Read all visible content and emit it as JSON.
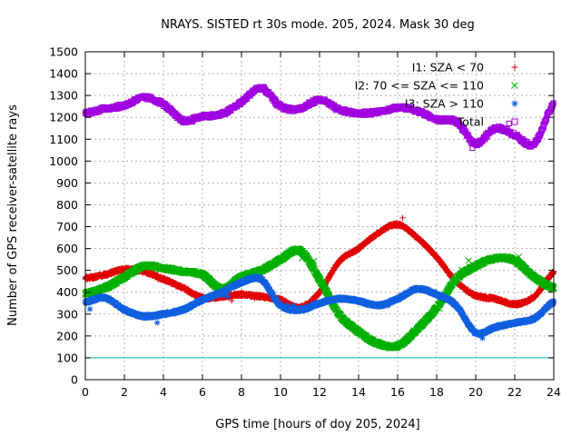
{
  "chart_data": {
    "type": "scatter",
    "title": "NRAYS. SISTED rt 30s mode. 205, 2024. Mask 30 deg",
    "xlabel": "GPS time [hours of doy 205, 2024]",
    "ylabel": "Number of GPS receiver-satellite rays",
    "xlim": [
      0,
      24
    ],
    "ylim": [
      0,
      1500
    ],
    "xticks": [
      0,
      2,
      4,
      6,
      8,
      10,
      12,
      14,
      16,
      18,
      20,
      22,
      24
    ],
    "yticks": [
      0,
      100,
      200,
      300,
      400,
      500,
      600,
      700,
      800,
      900,
      1000,
      1100,
      1200,
      1300,
      1400,
      1500
    ],
    "grid": true,
    "legend_position": "top-right",
    "threshold_line": {
      "y": 100,
      "color": "#00c0c0"
    },
    "series": [
      {
        "name": "I1: SZA < 70",
        "marker": "plus",
        "color": "#e00000",
        "points": [
          [
            0,
            465
          ],
          [
            1,
            480
          ],
          [
            2,
            505
          ],
          [
            3,
            495
          ],
          [
            4,
            460
          ],
          [
            5,
            420
          ],
          [
            6,
            375
          ],
          [
            7,
            380
          ],
          [
            8,
            390
          ],
          [
            9,
            380
          ],
          [
            10,
            365
          ],
          [
            11,
            330
          ],
          [
            12,
            400
          ],
          [
            13,
            540
          ],
          [
            14,
            600
          ],
          [
            15,
            670
          ],
          [
            16,
            710
          ],
          [
            17,
            650
          ],
          [
            18,
            560
          ],
          [
            19,
            450
          ],
          [
            20,
            385
          ],
          [
            21,
            370
          ],
          [
            22,
            345
          ],
          [
            23,
            380
          ],
          [
            24,
            490
          ]
        ]
      },
      {
        "name": "I2: 70 <= SZA <= 110",
        "marker": "x",
        "color": "#00b000",
        "points": [
          [
            0,
            395
          ],
          [
            1,
            420
          ],
          [
            2,
            470
          ],
          [
            3,
            520
          ],
          [
            4,
            510
          ],
          [
            5,
            495
          ],
          [
            6,
            480
          ],
          [
            7,
            415
          ],
          [
            8,
            470
          ],
          [
            9,
            500
          ],
          [
            10,
            550
          ],
          [
            11,
            590
          ],
          [
            12,
            460
          ],
          [
            13,
            300
          ],
          [
            14,
            220
          ],
          [
            15,
            165
          ],
          [
            16,
            155
          ],
          [
            17,
            230
          ],
          [
            18,
            330
          ],
          [
            19,
            460
          ],
          [
            20,
            520
          ],
          [
            21,
            555
          ],
          [
            22,
            545
          ],
          [
            23,
            470
          ],
          [
            24,
            420
          ]
        ]
      },
      {
        "name": "I3: SZA > 110",
        "marker": "star",
        "color": "#1060e0",
        "points": [
          [
            0,
            355
          ],
          [
            1,
            375
          ],
          [
            2,
            320
          ],
          [
            3,
            290
          ],
          [
            4,
            300
          ],
          [
            5,
            320
          ],
          [
            6,
            365
          ],
          [
            7,
            400
          ],
          [
            8,
            445
          ],
          [
            9,
            460
          ],
          [
            10,
            340
          ],
          [
            11,
            320
          ],
          [
            12,
            350
          ],
          [
            13,
            370
          ],
          [
            14,
            360
          ],
          [
            15,
            340
          ],
          [
            16,
            370
          ],
          [
            17,
            415
          ],
          [
            18,
            390
          ],
          [
            19,
            340
          ],
          [
            20,
            215
          ],
          [
            21,
            240
          ],
          [
            22,
            260
          ],
          [
            23,
            280
          ],
          [
            24,
            355
          ]
        ]
      },
      {
        "name": "Total",
        "marker": "square",
        "color": "#a000e0",
        "points": [
          [
            0,
            1220
          ],
          [
            1,
            1240
          ],
          [
            2,
            1255
          ],
          [
            3,
            1290
          ],
          [
            4,
            1260
          ],
          [
            5,
            1185
          ],
          [
            6,
            1205
          ],
          [
            7,
            1215
          ],
          [
            8,
            1270
          ],
          [
            9,
            1335
          ],
          [
            10,
            1250
          ],
          [
            11,
            1240
          ],
          [
            12,
            1280
          ],
          [
            13,
            1235
          ],
          [
            14,
            1220
          ],
          [
            15,
            1225
          ],
          [
            16,
            1245
          ],
          [
            17,
            1230
          ],
          [
            18,
            1190
          ],
          [
            19,
            1180
          ],
          [
            20,
            1080
          ],
          [
            21,
            1150
          ],
          [
            22,
            1120
          ],
          [
            23,
            1080
          ],
          [
            24,
            1260
          ]
        ]
      }
    ]
  }
}
